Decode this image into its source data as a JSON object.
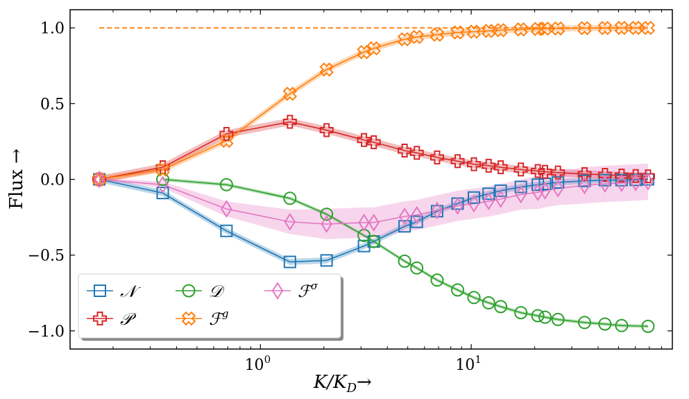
{
  "chart_data": {
    "type": "line",
    "title": "",
    "xlabel": "K/K_D →",
    "xlabel_main": "K/K",
    "xlabel_sub": "D",
    "xlabel_arrow": "→",
    "ylabel": "Flux →",
    "xscale": "log",
    "xlim": [
      0.125,
      90
    ],
    "ylim": [
      -1.12,
      1.12
    ],
    "yticks": [
      {
        "value": 1.0,
        "label": "1.0"
      },
      {
        "value": 0.5,
        "label": "0.5"
      },
      {
        "value": 0.0,
        "label": "0.0"
      },
      {
        "value": -0.5,
        "label": "−0.5"
      },
      {
        "value": -1.0,
        "label": "−1.0"
      }
    ],
    "xticks_major": [
      {
        "value": 1,
        "label_base": "10",
        "label_exp": "0"
      },
      {
        "value": 10,
        "label_base": "10",
        "label_exp": "1"
      }
    ],
    "xticks_minor": [
      0.2,
      0.3,
      0.4,
      0.5,
      0.6,
      0.7,
      0.8,
      0.9,
      2,
      3,
      4,
      5,
      6,
      7,
      8,
      9,
      20,
      30,
      40,
      50,
      60,
      70,
      80,
      90
    ],
    "reference_line": {
      "y": 1.0,
      "x_start": 0.172,
      "x_end": 68,
      "color": "#ff7f0e",
      "style": "dashed"
    },
    "series": [
      {
        "name": "N",
        "legend_label": "𝒩",
        "color": "#1f77b4",
        "marker": "square",
        "band": 0.02,
        "x": [
          0.172,
          0.344,
          0.69,
          1.38,
          2.06,
          3.1,
          3.45,
          4.83,
          5.52,
          6.89,
          8.62,
          10.3,
          12.1,
          13.8,
          17.2,
          20.7,
          22.4,
          25.8,
          34.5,
          43.1,
          51.7,
          60.3,
          69
        ],
        "y": [
          0.0,
          -0.09,
          -0.34,
          -0.545,
          -0.535,
          -0.44,
          -0.41,
          -0.31,
          -0.28,
          -0.21,
          -0.16,
          -0.12,
          -0.095,
          -0.075,
          -0.05,
          -0.035,
          -0.03,
          -0.02,
          -0.01,
          -0.005,
          -0.005,
          -0.003,
          0.0
        ]
      },
      {
        "name": "P",
        "legend_label": "𝒫",
        "color": "#d62728",
        "marker": "plus",
        "band": 0.025,
        "x": [
          0.172,
          0.344,
          0.69,
          1.38,
          2.06,
          3.1,
          3.45,
          4.83,
          5.52,
          6.89,
          8.62,
          10.3,
          12.1,
          13.8,
          17.2,
          20.7,
          22.4,
          25.8,
          34.5,
          43.1,
          51.7,
          60.3,
          69
        ],
        "y": [
          0.0,
          0.08,
          0.3,
          0.38,
          0.325,
          0.26,
          0.245,
          0.19,
          0.175,
          0.145,
          0.12,
          0.1,
          0.09,
          0.08,
          0.065,
          0.055,
          0.05,
          0.045,
          0.035,
          0.03,
          0.025,
          0.022,
          0.02
        ]
      },
      {
        "name": "D",
        "legend_label": "𝒟",
        "color": "#2ca02c",
        "marker": "circle",
        "band": 0.012,
        "x": [
          0.344,
          0.69,
          1.38,
          2.06,
          3.1,
          3.45,
          4.83,
          5.52,
          6.89,
          8.62,
          10.3,
          12.1,
          13.8,
          17.2,
          20.7,
          22.4,
          25.8,
          34.5,
          43.1,
          51.7,
          69
        ],
        "y": [
          0.0,
          -0.035,
          -0.125,
          -0.23,
          -0.37,
          -0.41,
          -0.54,
          -0.585,
          -0.665,
          -0.73,
          -0.78,
          -0.815,
          -0.84,
          -0.88,
          -0.9,
          -0.91,
          -0.925,
          -0.945,
          -0.955,
          -0.965,
          -0.97
        ]
      },
      {
        "name": "Fg",
        "legend_label": "ℱ",
        "legend_sup": "g",
        "color": "#ff7f0e",
        "marker": "xplus",
        "band": 0.02,
        "x": [
          0.172,
          0.344,
          0.69,
          1.38,
          2.06,
          3.1,
          3.45,
          4.83,
          5.52,
          6.89,
          8.62,
          10.3,
          12.1,
          13.8,
          17.2,
          20.7,
          22.4,
          25.8,
          34.5,
          43.1,
          51.7,
          60.3,
          69
        ],
        "y": [
          0.0,
          0.065,
          0.255,
          0.565,
          0.725,
          0.84,
          0.865,
          0.925,
          0.94,
          0.955,
          0.97,
          0.975,
          0.98,
          0.985,
          0.99,
          0.993,
          0.995,
          0.996,
          0.998,
          0.999,
          1.0,
          1.0,
          1.0
        ]
      },
      {
        "name": "Fsigma",
        "legend_label": "ℱ",
        "legend_sup": "σ",
        "color": "#e377c2",
        "marker": "diamond",
        "band_lo": [
          0.01,
          0.02,
          0.05,
          0.08,
          0.1,
          0.1,
          0.1,
          0.1,
          0.1,
          0.1,
          0.1,
          0.1,
          0.1,
          0.1,
          0.1,
          0.11,
          0.11,
          0.11,
          0.12,
          0.12,
          0.12,
          0.12,
          0.12
        ],
        "x": [
          0.172,
          0.344,
          0.69,
          1.38,
          2.06,
          3.1,
          3.45,
          4.83,
          5.52,
          6.89,
          8.62,
          10.3,
          12.1,
          13.8,
          17.2,
          20.7,
          22.4,
          25.8,
          34.5,
          43.1,
          51.7,
          60.3,
          69
        ],
        "y": [
          0.0,
          -0.035,
          -0.195,
          -0.28,
          -0.295,
          -0.285,
          -0.285,
          -0.245,
          -0.235,
          -0.205,
          -0.175,
          -0.16,
          -0.145,
          -0.13,
          -0.1,
          -0.085,
          -0.075,
          -0.06,
          -0.04,
          -0.03,
          -0.025,
          -0.02,
          -0.015
        ]
      }
    ],
    "legend": {
      "position": "bottom-left",
      "columns": 3
    }
  }
}
